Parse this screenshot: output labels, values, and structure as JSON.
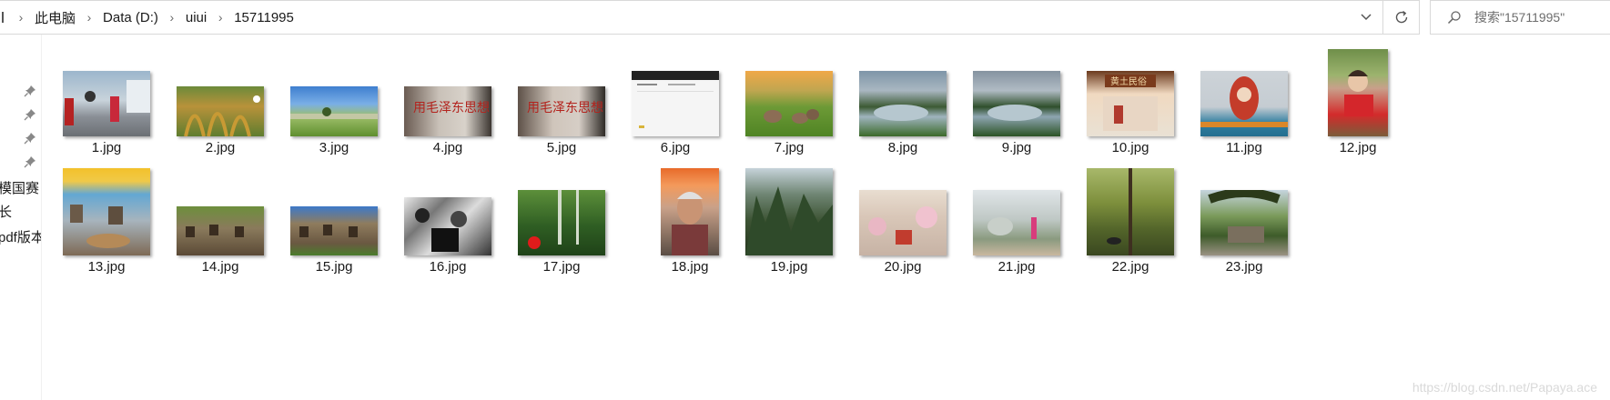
{
  "address_bar": {
    "crumbs": [
      "此电脑",
      "Data (D:)",
      "uiui",
      "15711995"
    ]
  },
  "search": {
    "placeholder": "搜索\"15711995\""
  },
  "nav": {
    "labels": [
      "模国赛",
      "长",
      "pdf版本"
    ]
  },
  "files": [
    {
      "name": "1.jpg"
    },
    {
      "name": "2.jpg"
    },
    {
      "name": "3.jpg"
    },
    {
      "name": "4.jpg"
    },
    {
      "name": "5.jpg"
    },
    {
      "name": "6.jpg"
    },
    {
      "name": "7.jpg"
    },
    {
      "name": "8.jpg"
    },
    {
      "name": "9.jpg"
    },
    {
      "name": "10.jpg"
    },
    {
      "name": "11.jpg"
    },
    {
      "name": "12.jpg"
    },
    {
      "name": "13.jpg"
    },
    {
      "name": "14.jpg"
    },
    {
      "name": "15.jpg"
    },
    {
      "name": "16.jpg"
    },
    {
      "name": "17.jpg"
    },
    {
      "name": "18.jpg"
    },
    {
      "name": "19.jpg"
    },
    {
      "name": "20.jpg"
    },
    {
      "name": "21.jpg"
    },
    {
      "name": "22.jpg"
    },
    {
      "name": "23.jpg"
    }
  ],
  "watermark": "https://blog.csdn.net/Papaya.ace",
  "icons": {
    "dropdown": "chevron-down-icon",
    "refresh": "refresh-icon",
    "search": "search-icon",
    "pin": "pin-icon",
    "separator": "chevron-right-icon"
  }
}
